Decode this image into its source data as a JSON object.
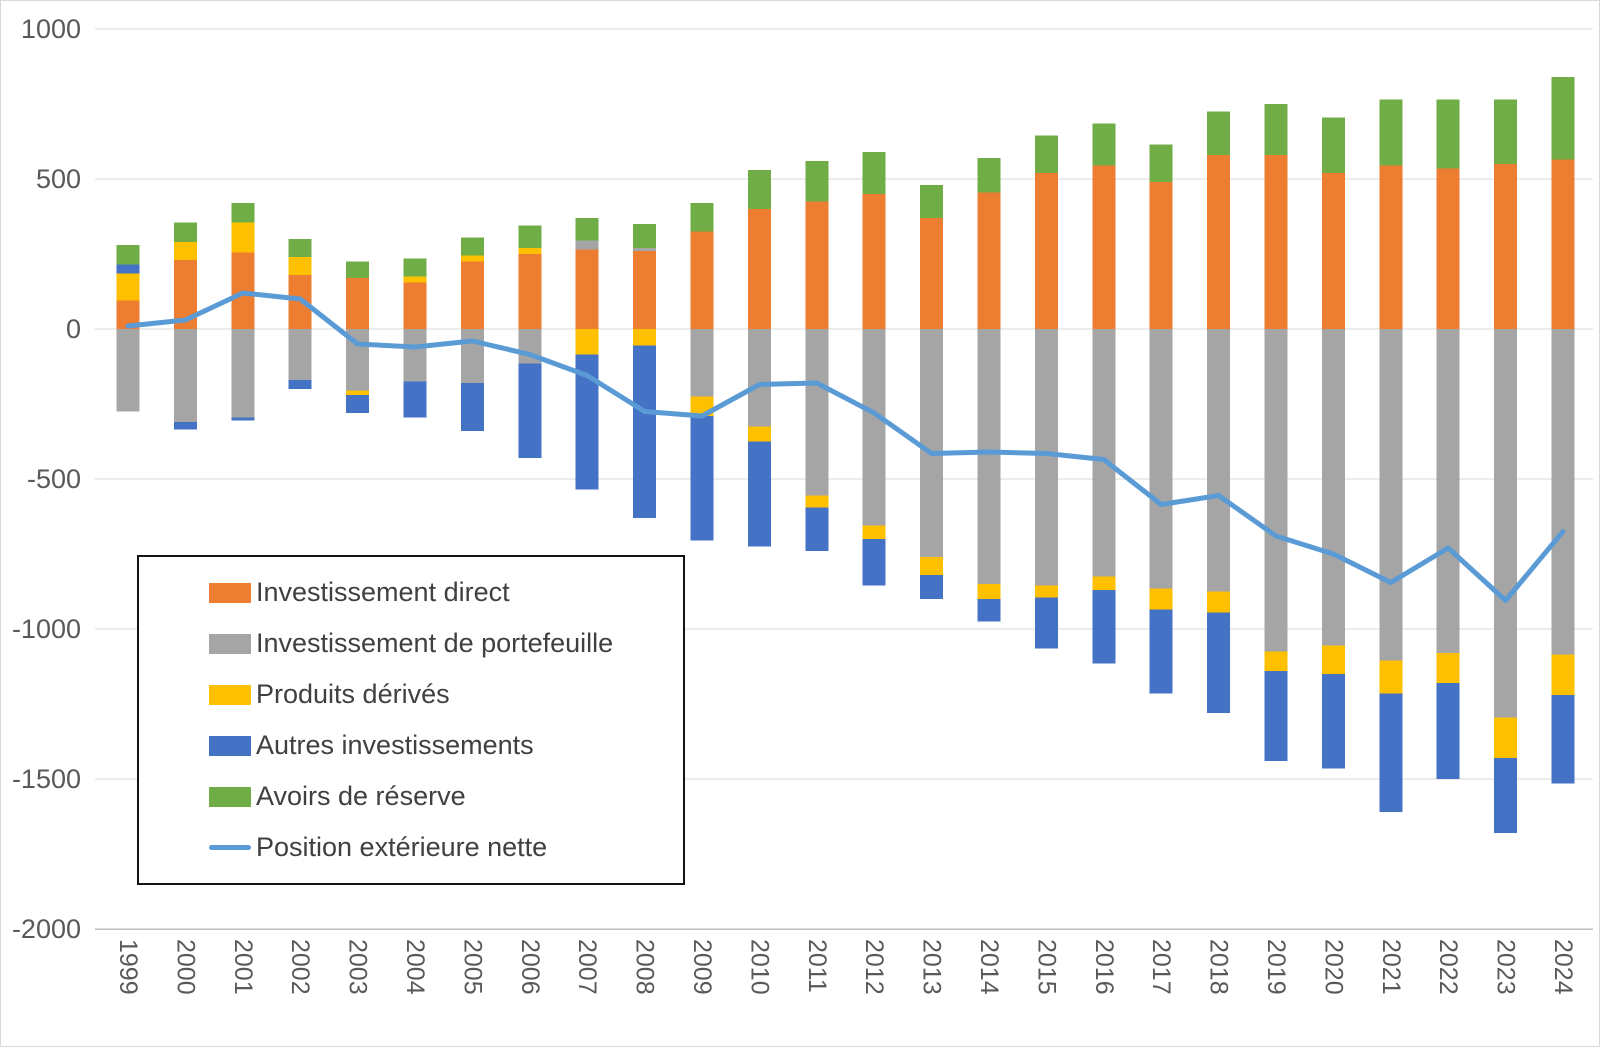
{
  "chart_data": {
    "type": "bar",
    "subtype": "stacked-bars-with-line-overlay",
    "title": "",
    "xlabel": "",
    "ylabel": "",
    "ylim": [
      -2000,
      1000
    ],
    "yticks": [
      1000,
      500,
      0,
      -500,
      -1000,
      -1500,
      -2000
    ],
    "grid": true,
    "legend_position": "inside-bottom-left",
    "categories": [
      1999,
      2000,
      2001,
      2002,
      2003,
      2004,
      2005,
      2006,
      2007,
      2008,
      2009,
      2010,
      2011,
      2012,
      2013,
      2014,
      2015,
      2016,
      2017,
      2018,
      2019,
      2020,
      2021,
      2022,
      2023,
      2024
    ],
    "series": [
      {
        "name": "Investissement direct",
        "color": "#ED7D31",
        "values": [
          95,
          230,
          255,
          180,
          170,
          155,
          225,
          250,
          265,
          260,
          325,
          400,
          425,
          450,
          370,
          455,
          520,
          545,
          490,
          580,
          580,
          520,
          545,
          535,
          550,
          565
        ]
      },
      {
        "name": "Investissement de portefeuille",
        "color": "#A5A5A5",
        "values": [
          -275,
          -310,
          -295,
          -170,
          -205,
          -175,
          -180,
          -115,
          30,
          10,
          -225,
          -325,
          -555,
          -655,
          -760,
          -850,
          -855,
          -825,
          -865,
          -875,
          -1075,
          -1055,
          -1105,
          -1080,
          -1295,
          -1085
        ]
      },
      {
        "name": "Produits dérivés",
        "color": "#FFC000",
        "values": [
          90,
          60,
          100,
          60,
          -15,
          20,
          20,
          20,
          -85,
          -55,
          -65,
          -50,
          -40,
          -45,
          -60,
          -50,
          -40,
          -45,
          -70,
          -70,
          -65,
          -95,
          -110,
          -100,
          -135,
          -135
        ]
      },
      {
        "name": "Autres investissements",
        "color": "#4472C4",
        "values": [
          30,
          -25,
          -10,
          -30,
          -60,
          -120,
          -160,
          -315,
          -450,
          -575,
          -415,
          -350,
          -145,
          -155,
          -80,
          -75,
          -170,
          -245,
          -280,
          -335,
          -300,
          -315,
          -395,
          -320,
          -250,
          -295
        ]
      },
      {
        "name": "Avoirs de réserve",
        "color": "#70AD47",
        "values": [
          65,
          65,
          65,
          60,
          55,
          60,
          60,
          75,
          75,
          80,
          95,
          130,
          135,
          140,
          110,
          115,
          125,
          140,
          125,
          145,
          170,
          185,
          220,
          230,
          215,
          275
        ]
      }
    ],
    "line_series": {
      "name": "Position extérieure nette",
      "color": "#5B9BD5",
      "values": [
        10,
        30,
        120,
        100,
        -50,
        -60,
        -40,
        -85,
        -155,
        -275,
        -290,
        -185,
        -180,
        -280,
        -415,
        -410,
        -415,
        -435,
        -585,
        -555,
        -690,
        -750,
        -845,
        -730,
        -905,
        -675
      ]
    },
    "axis_text_color": "#595959",
    "gridline_color": "#D9D9D9",
    "bottom_axis_color": "#BFBFBF"
  }
}
